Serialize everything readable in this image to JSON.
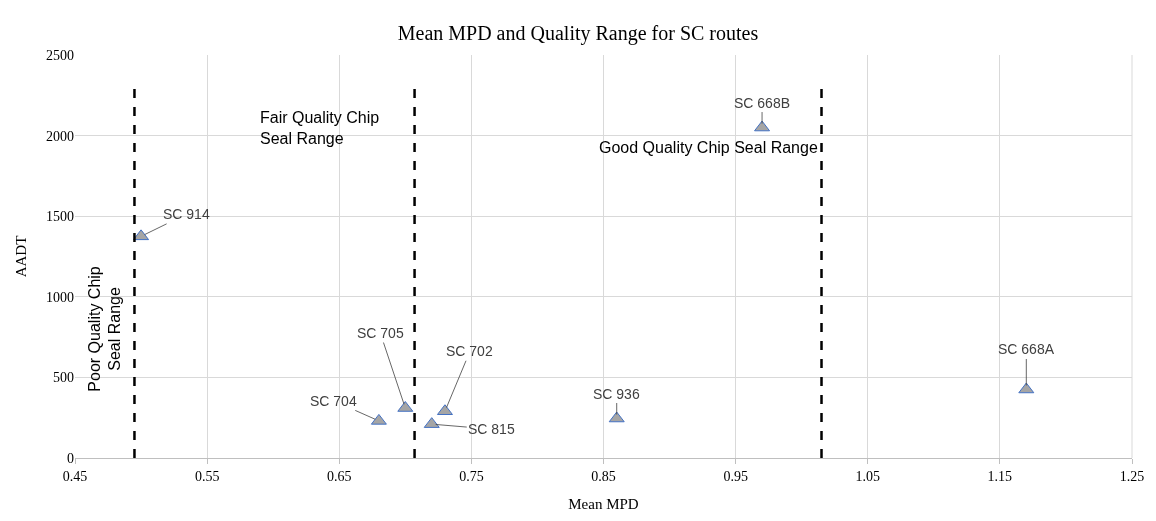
{
  "chart_data": {
    "type": "scatter",
    "title": "Mean MPD and Quality Range for SC routes",
    "xlabel": "Mean MPD",
    "ylabel": "AADT",
    "series": [
      {
        "color": "#a5a5a5",
        "x": [
          0.5,
          0.68,
          0.7,
          0.97,
          0.73,
          0.72,
          0.86,
          1.17
        ],
        "values": [
          1375,
          230,
          310,
          2050,
          290,
          210,
          245,
          425
        ]
      }
    ],
    "marker": "triangle",
    "xlim": [
      0.45,
      1.25
    ],
    "xticks": [
      0.45,
      0.55,
      0.65,
      0.75,
      0.85,
      0.95,
      1.05,
      1.15,
      1.25
    ],
    "ylim": [
      0,
      2500
    ],
    "yticks": [
      0,
      500,
      1000,
      1500,
      2000,
      2500
    ],
    "grid": true,
    "ref_lines": [
      {
        "axis": "x",
        "value": 0.495,
        "color": "#000000",
        "line_style": "dashed"
      },
      {
        "axis": "x",
        "value": 0.707,
        "color": "#000000",
        "line_style": "dashed"
      },
      {
        "axis": "x",
        "value": 1.015,
        "color": "#000000",
        "line_style": "dashed"
      }
    ],
    "annotations": [
      "Poor Quality Chip\nSeal Range",
      "Fair Quality Chip\nSeal Range",
      "Good Quality Chip Seal Range",
      {
        "text": "SC 914",
        "x": 0.5,
        "y": 1375
      },
      {
        "text": "SC 704",
        "x": 0.68,
        "y": 230
      },
      {
        "text": "SC 705",
        "x": 0.7,
        "y": 310
      },
      {
        "text": "SC 668B",
        "x": 0.97,
        "y": 2050
      },
      {
        "text": "SC 702",
        "x": 0.73,
        "y": 290
      },
      {
        "text": "SC 815",
        "x": 0.72,
        "y": 210
      },
      {
        "text": "SC 936",
        "x": 0.86,
        "y": 245
      },
      {
        "text": "SC 668A",
        "x": 1.17,
        "y": 425
      }
    ]
  }
}
